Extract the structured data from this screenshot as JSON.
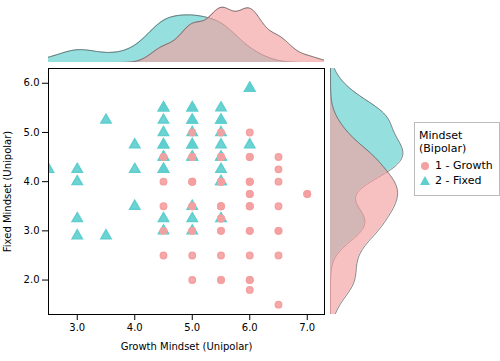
{
  "chart_data": {
    "type": "scatter",
    "xlabel": "Growth Mindset (Unipolar)",
    "ylabel": "Fixed Mindset (Unipolar)",
    "legend_title": "Mindset (Bipolar)",
    "legend": "right",
    "grid": false,
    "xlim": [
      2.5,
      7.3
    ],
    "ylim": [
      1.3,
      6.3
    ],
    "xticks": [
      3,
      4,
      5,
      6,
      7
    ],
    "yticks": [
      2,
      3,
      4,
      5,
      6
    ],
    "series": [
      {
        "name": "1 - Growth",
        "color": "#F4A0A0",
        "marker": "circle",
        "x": [
          4.5,
          4.5,
          4.5,
          4.5,
          4.5,
          5.0,
          5.0,
          5.0,
          5.0,
          5.0,
          5.0,
          5.0,
          5.0,
          5.5,
          5.5,
          5.5,
          5.5,
          5.5,
          5.5,
          5.5,
          5.5,
          5.5,
          5.5,
          6.0,
          6.0,
          6.0,
          6.0,
          6.0,
          6.0,
          6.0,
          6.0,
          6.0,
          6.0,
          6.5,
          6.5,
          6.5,
          6.5,
          6.5,
          6.5,
          5.0,
          5.0,
          5.5,
          5.5,
          6.0,
          6.0,
          5.0,
          5.5,
          5.5,
          6.0,
          6.0,
          5.0,
          5.5,
          6.0,
          5.5,
          6.0,
          6.5,
          7.0,
          5.5,
          6.0,
          6.5,
          7.0
        ],
        "values": [
          4.0,
          3.5,
          3.0,
          2.5,
          4.5,
          4.5,
          4.0,
          4.0,
          3.5,
          3.5,
          3.0,
          3.0,
          2.5,
          4.5,
          4.5,
          4.0,
          4.0,
          3.5,
          3.5,
          3.0,
          3.0,
          2.5,
          2.0,
          4.5,
          4.0,
          4.0,
          3.5,
          3.5,
          3.0,
          3.0,
          2.5,
          2.0,
          1.8,
          4.0,
          3.5,
          3.0,
          3.0,
          2.5,
          1.5,
          5.0,
          4.5,
          5.0,
          4.5,
          5.0,
          4.5,
          4.0,
          4.0,
          3.5,
          4.0,
          3.5,
          2.0,
          2.0,
          2.0,
          3.25,
          3.75,
          4.5,
          3.75,
          3.25,
          3.75,
          4.25,
          3.75
        ]
      },
      {
        "name": "2 - Fixed",
        "color": "#5ECECE",
        "marker": "triangle",
        "x": [
          2.5,
          3.0,
          3.0,
          3.0,
          3.0,
          3.5,
          4.0,
          4.0,
          4.5,
          4.5,
          4.5,
          4.5,
          4.5,
          4.5,
          4.5,
          5.0,
          5.0,
          5.0,
          5.0,
          5.0,
          5.0,
          5.5,
          5.5,
          5.5,
          5.5,
          5.5,
          6.0,
          6.0,
          3.5,
          4.0,
          4.5,
          4.5,
          5.0,
          5.0,
          5.5,
          5.5,
          5.5,
          6.0,
          4.5,
          4.5,
          5.0,
          5.0,
          5.5,
          5.5,
          5.0,
          4.5,
          5.0,
          5.5
        ],
        "values": [
          4.25,
          4.25,
          4.0,
          3.25,
          2.9,
          5.25,
          4.25,
          3.5,
          5.5,
          5.25,
          5.0,
          4.75,
          4.5,
          4.25,
          3.0,
          5.25,
          5.0,
          4.75,
          4.5,
          3.5,
          3.0,
          5.25,
          5.0,
          4.75,
          4.5,
          4.0,
          5.9,
          5.9,
          2.9,
          4.75,
          4.5,
          4.25,
          4.75,
          4.5,
          4.5,
          4.25,
          4.0,
          4.75,
          5.5,
          4.75,
          5.5,
          5.25,
          5.5,
          5.25,
          5.5,
          3.25,
          3.25,
          3.25
        ]
      }
    ]
  }
}
